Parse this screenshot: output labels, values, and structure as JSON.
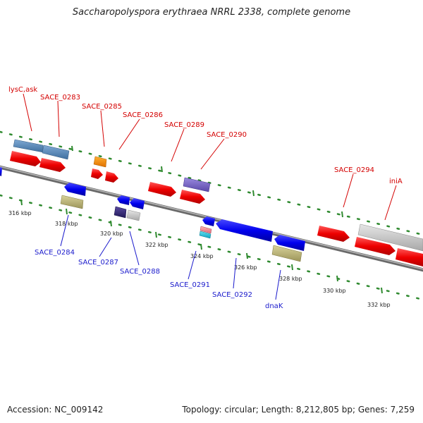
{
  "title": "Saccharopolyspora erythraea NRRL 2338, complete genome",
  "footer": {
    "accession": "Accession: NC_009142",
    "summary": "Topology: circular; Length: 8,212,805 bp; Genes: 7,259"
  },
  "colors": {
    "forward_label": "#d40000",
    "reverse_label": "#1a1acc",
    "backbone": "#8a8a8a",
    "dots": "#2f8a2f"
  },
  "ticks": [
    "316 kbp",
    "318 kbp",
    "320 kbp",
    "322 kbp",
    "324 kbp",
    "326 kbp",
    "328 kbp",
    "330 kbp",
    "332 kbp"
  ],
  "forward_labels": [
    "lysC,ask",
    "SACE_0283",
    "SACE_0285",
    "SACE_0286",
    "SACE_0289",
    "SACE_0290",
    "SACE_0294",
    "iniA"
  ],
  "reverse_labels": [
    "SACE_0284",
    "SACE_0287",
    "SACE_0288",
    "SACE_0291",
    "SACE_0292",
    "dnaK"
  ]
}
